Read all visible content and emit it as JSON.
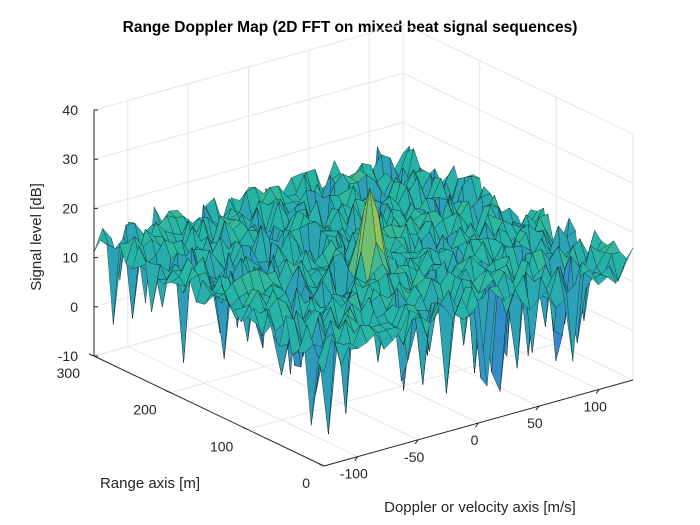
{
  "chart_data": {
    "type": "surface",
    "title": "Range Doppler Map (2D FFT on mixed beat signal sequences)",
    "xlabel": "Doppler or velocity axis [m/s]",
    "ylabel": "Range axis [m]",
    "zlabel": "Signal level [dB]",
    "xlim": [
      -128,
      128
    ],
    "ylim": [
      0,
      300
    ],
    "zlim": [
      -10,
      40
    ],
    "xticks": [
      -100,
      -50,
      0,
      50,
      100
    ],
    "yticks": [
      0,
      100,
      200,
      300
    ],
    "zticks": [
      -10,
      0,
      10,
      20,
      30,
      40
    ],
    "grid": true,
    "colormap": "parula",
    "noise_floor_db": 13,
    "peak": {
      "doppler": -18,
      "range": 110,
      "level_db": 31
    },
    "colors": {
      "low": "#3a7bd5",
      "mid": "#26b5a5",
      "high": "#e6cf1f",
      "edge": "#000000"
    }
  }
}
